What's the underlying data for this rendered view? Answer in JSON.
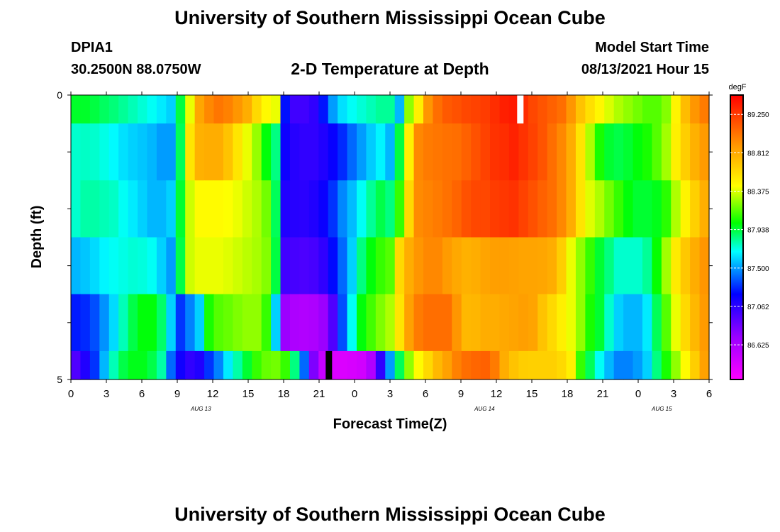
{
  "page": {
    "title_top": "University of Southern Mississippi Ocean Cube",
    "title_bottom": "University of Southern Mississippi Ocean Cube",
    "station": "DPIA1",
    "coords": "30.2500N  88.0750W",
    "plot_title": "2-D Temperature at Depth",
    "model_start_label": "Model Start Time",
    "model_start_value": "08/13/2021 Hour 15"
  },
  "chart_data": {
    "type": "heatmap",
    "title": "2-D Temperature at Depth",
    "xlabel": "Forecast Time(Z)",
    "ylabel": "Depth (ft)",
    "x_tick_labels": [
      "0",
      "3",
      "6",
      "9",
      "12",
      "15",
      "18",
      "21",
      "0",
      "3",
      "6",
      "9",
      "12",
      "15",
      "18",
      "21",
      "0",
      "3",
      "6"
    ],
    "y_tick_labels": [
      "0",
      "5"
    ],
    "ylim": [
      0,
      5
    ],
    "date_labels": [
      {
        "label": "AUG 13",
        "hour_index": 11
      },
      {
        "label": "AUG 14",
        "hour_index": 35
      },
      {
        "label": "AUG 15",
        "hour_index": 50
      }
    ],
    "colorbar": {
      "unit": "degF",
      "tick_labels": [
        "89.250",
        "88.812",
        "88.375",
        "87.938",
        "87.500",
        "87.062",
        "86.625"
      ],
      "ticks": [
        89.25,
        88.812,
        88.375,
        87.938,
        87.5,
        87.062,
        86.625
      ],
      "range": [
        86.23,
        89.47
      ]
    },
    "depth_layers_ft": [
      0.25,
      1.0,
      2.0,
      3.0,
      4.0,
      4.75
    ],
    "hours": 54,
    "values": [
      [
        87.96,
        87.96,
        87.93,
        87.89,
        87.86,
        87.82,
        87.78,
        87.74,
        87.7,
        87.65,
        87.6,
        87.93,
        88.4,
        88.83,
        88.95,
        89.02,
        88.98,
        88.9,
        88.8,
        88.6,
        88.46,
        88.4,
        87.23,
        87.0,
        87.0,
        87.05,
        87.24,
        87.5,
        87.63,
        87.7,
        87.74,
        87.78,
        87.82,
        87.82,
        87.55,
        88.25,
        88.5,
        88.9,
        89.05,
        89.13,
        89.16,
        89.2,
        89.22,
        89.24,
        89.3,
        89.35,
        89.37,
        89.3,
        89.2,
        89.15,
        89.1,
        89.05,
        88.9,
        88.7,
        88.57,
        88.47,
        88.37,
        88.3,
        88.25,
        88.2,
        88.15,
        88.15,
        88.23,
        88.48,
        88.73,
        88.9,
        89.0
      ],
      [
        87.75,
        87.76,
        87.75,
        87.72,
        87.68,
        87.63,
        87.6,
        87.58,
        87.55,
        87.5,
        87.5,
        87.9,
        88.55,
        88.78,
        88.8,
        88.8,
        88.7,
        88.55,
        88.4,
        88.26,
        88.0,
        87.85,
        87.16,
        87.08,
        87.05,
        87.05,
        87.1,
        87.18,
        87.28,
        87.4,
        87.5,
        87.59,
        87.67,
        87.55,
        87.93,
        88.5,
        88.95,
        89.0,
        89.02,
        89.04,
        89.05,
        89.1,
        89.16,
        89.22,
        89.28,
        89.3,
        89.34,
        89.28,
        89.22,
        89.15,
        89.05,
        88.95,
        88.8,
        88.55,
        88.3,
        88.05,
        87.95,
        87.92,
        87.95,
        88.0,
        88.05,
        88.15,
        88.28,
        88.5,
        88.65,
        88.78,
        88.88
      ],
      [
        87.75,
        87.8,
        87.8,
        87.78,
        87.76,
        87.7,
        87.65,
        87.6,
        87.55,
        87.55,
        87.6,
        87.95,
        88.35,
        88.45,
        88.45,
        88.45,
        88.43,
        88.4,
        88.35,
        88.3,
        88.2,
        87.9,
        87.1,
        87.08,
        87.07,
        87.1,
        87.17,
        87.3,
        87.46,
        87.56,
        87.7,
        87.82,
        87.92,
        87.85,
        88.1,
        88.6,
        88.94,
        88.97,
        89.0,
        89.04,
        89.09,
        89.16,
        89.2,
        89.2,
        89.24,
        89.26,
        89.28,
        89.22,
        89.16,
        89.1,
        89.05,
        88.95,
        88.8,
        88.55,
        88.38,
        88.3,
        88.2,
        88.1,
        88.0,
        87.95,
        87.95,
        87.98,
        88.08,
        88.3,
        88.48,
        88.64,
        88.79
      ],
      [
        87.55,
        87.58,
        87.62,
        87.67,
        87.7,
        87.72,
        87.74,
        87.73,
        87.7,
        87.6,
        87.5,
        87.92,
        88.35,
        88.4,
        88.4,
        88.4,
        88.38,
        88.35,
        88.32,
        88.29,
        88.23,
        87.93,
        87.0,
        86.98,
        86.96,
        86.98,
        87.05,
        87.22,
        87.4,
        87.6,
        87.85,
        88.0,
        88.1,
        88.15,
        88.6,
        88.8,
        88.9,
        88.95,
        88.95,
        88.88,
        88.82,
        88.78,
        88.8,
        88.84,
        88.86,
        88.86,
        88.85,
        88.84,
        88.84,
        88.83,
        88.8,
        88.65,
        88.4,
        88.25,
        88.1,
        87.95,
        87.85,
        87.75,
        87.75,
        87.75,
        87.82,
        88.02,
        88.28,
        88.52,
        88.68,
        88.8,
        88.9
      ],
      [
        87.25,
        87.28,
        87.35,
        87.48,
        87.62,
        87.78,
        87.92,
        88.0,
        88.0,
        87.88,
        87.6,
        87.3,
        87.45,
        87.6,
        88.05,
        88.15,
        88.18,
        88.22,
        88.25,
        88.25,
        88.1,
        87.6,
        86.7,
        86.62,
        86.6,
        86.62,
        86.7,
        86.95,
        87.35,
        87.7,
        88.0,
        88.12,
        88.22,
        88.3,
        88.55,
        88.85,
        89.0,
        89.05,
        89.05,
        89.05,
        88.9,
        88.75,
        88.76,
        88.8,
        88.8,
        88.82,
        88.84,
        88.86,
        88.84,
        88.7,
        88.6,
        88.5,
        88.4,
        88.25,
        88.05,
        87.95,
        87.75,
        87.6,
        87.55,
        87.55,
        87.65,
        87.9,
        88.15,
        88.4,
        88.6,
        88.75,
        88.88
      ],
      [
        86.95,
        87.1,
        87.3,
        87.55,
        87.78,
        87.92,
        87.98,
        87.98,
        87.92,
        87.8,
        87.4,
        87.15,
        87.05,
        87.1,
        87.3,
        87.45,
        87.65,
        87.8,
        87.95,
        88.1,
        88.18,
        88.2,
        88.1,
        87.85,
        87.4,
        86.8,
        86.5,
        86.4,
        86.4,
        86.42,
        86.45,
        86.6,
        87.05,
        87.5,
        87.9,
        88.25,
        88.45,
        88.6,
        88.75,
        88.85,
        88.98,
        89.05,
        89.08,
        89.1,
        89.0,
        88.8,
        88.7,
        88.65,
        88.64,
        88.64,
        88.64,
        88.6,
        88.5,
        88.1,
        87.9,
        87.7,
        87.55,
        87.45,
        87.45,
        87.5,
        87.6,
        87.85,
        88.05,
        88.25,
        88.45,
        88.65,
        88.85
      ]
    ],
    "annotations": [
      {
        "type": "white-bar",
        "hour": 38.0,
        "depth_ft": 0.25
      },
      {
        "type": "black-bar",
        "hour": 21.8,
        "depth_ft": 4.75
      }
    ]
  }
}
